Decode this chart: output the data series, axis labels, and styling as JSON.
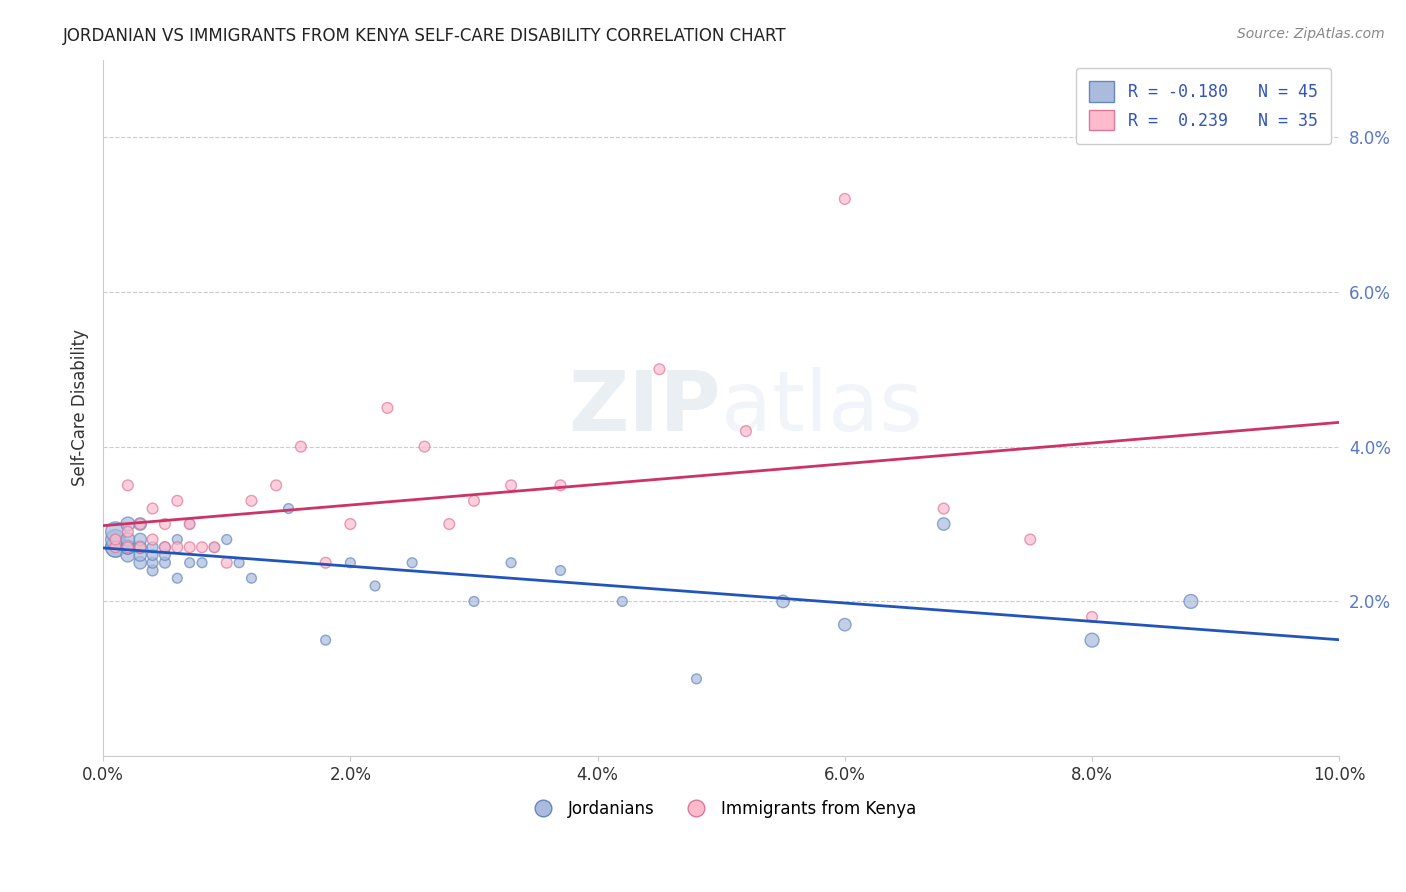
{
  "title": "JORDANIAN VS IMMIGRANTS FROM KENYA SELF-CARE DISABILITY CORRELATION CHART",
  "source": "Source: ZipAtlas.com",
  "ylabel": "Self-Care Disability",
  "xlim": [
    0.0,
    0.1
  ],
  "ylim": [
    0.0,
    0.09
  ],
  "xticks": [
    0.0,
    0.02,
    0.04,
    0.06,
    0.08,
    0.1
  ],
  "yticks": [
    0.0,
    0.02,
    0.04,
    0.06,
    0.08
  ],
  "ytick_labels": [
    "",
    "2.0%",
    "4.0%",
    "6.0%",
    "8.0%"
  ],
  "xtick_labels": [
    "0.0%",
    "2.0%",
    "4.0%",
    "6.0%",
    "8.0%",
    "10.0%"
  ],
  "jordanians_color": "#aabbdd",
  "jordanians_edge_color": "#6688bb",
  "kenya_color": "#ffbbcc",
  "kenya_edge_color": "#dd7799",
  "jordanians_line_color": "#2255bb",
  "kenya_line_color": "#cc3366",
  "jordanians_R": -0.18,
  "jordanians_N": 45,
  "kenya_R": 0.239,
  "kenya_N": 35,
  "legend_label_1": "Jordanians",
  "legend_label_2": "Immigrants from Kenya",
  "watermark": "ZIPatlas",
  "jordanians_x": [
    0.001,
    0.001,
    0.001,
    0.001,
    0.002,
    0.002,
    0.002,
    0.002,
    0.002,
    0.003,
    0.003,
    0.003,
    0.003,
    0.003,
    0.004,
    0.004,
    0.004,
    0.004,
    0.005,
    0.005,
    0.005,
    0.006,
    0.006,
    0.007,
    0.007,
    0.008,
    0.009,
    0.01,
    0.011,
    0.012,
    0.015,
    0.018,
    0.02,
    0.022,
    0.025,
    0.03,
    0.033,
    0.037,
    0.042,
    0.048,
    0.055,
    0.06,
    0.068,
    0.08,
    0.088
  ],
  "jordanians_y": [
    0.027,
    0.027,
    0.028,
    0.029,
    0.026,
    0.027,
    0.027,
    0.028,
    0.03,
    0.025,
    0.026,
    0.027,
    0.028,
    0.03,
    0.024,
    0.025,
    0.026,
    0.027,
    0.025,
    0.026,
    0.027,
    0.023,
    0.028,
    0.025,
    0.03,
    0.025,
    0.027,
    0.028,
    0.025,
    0.023,
    0.032,
    0.015,
    0.025,
    0.022,
    0.025,
    0.02,
    0.025,
    0.024,
    0.02,
    0.01,
    0.02,
    0.017,
    0.03,
    0.015,
    0.02
  ],
  "jordanians_size": [
    200,
    200,
    200,
    200,
    100,
    100,
    100,
    100,
    100,
    80,
    80,
    80,
    80,
    80,
    60,
    60,
    60,
    60,
    60,
    60,
    60,
    50,
    50,
    50,
    50,
    50,
    50,
    50,
    50,
    50,
    50,
    50,
    50,
    50,
    50,
    50,
    50,
    50,
    50,
    50,
    80,
    80,
    80,
    100,
    100
  ],
  "kenya_x": [
    0.001,
    0.001,
    0.002,
    0.002,
    0.002,
    0.003,
    0.003,
    0.004,
    0.004,
    0.005,
    0.005,
    0.006,
    0.006,
    0.007,
    0.007,
    0.008,
    0.009,
    0.01,
    0.012,
    0.014,
    0.016,
    0.018,
    0.02,
    0.023,
    0.026,
    0.028,
    0.03,
    0.033,
    0.037,
    0.045,
    0.052,
    0.06,
    0.068,
    0.075,
    0.08
  ],
  "kenya_y": [
    0.027,
    0.028,
    0.027,
    0.029,
    0.035,
    0.027,
    0.03,
    0.028,
    0.032,
    0.027,
    0.03,
    0.027,
    0.033,
    0.027,
    0.03,
    0.027,
    0.027,
    0.025,
    0.033,
    0.035,
    0.04,
    0.025,
    0.03,
    0.045,
    0.04,
    0.03,
    0.033,
    0.035,
    0.035,
    0.05,
    0.042,
    0.072,
    0.032,
    0.028,
    0.018
  ],
  "kenya_size": [
    60,
    60,
    60,
    60,
    60,
    60,
    60,
    60,
    60,
    60,
    60,
    60,
    60,
    60,
    60,
    60,
    60,
    60,
    60,
    60,
    60,
    60,
    60,
    60,
    60,
    60,
    60,
    60,
    60,
    60,
    60,
    60,
    60,
    60,
    60
  ]
}
